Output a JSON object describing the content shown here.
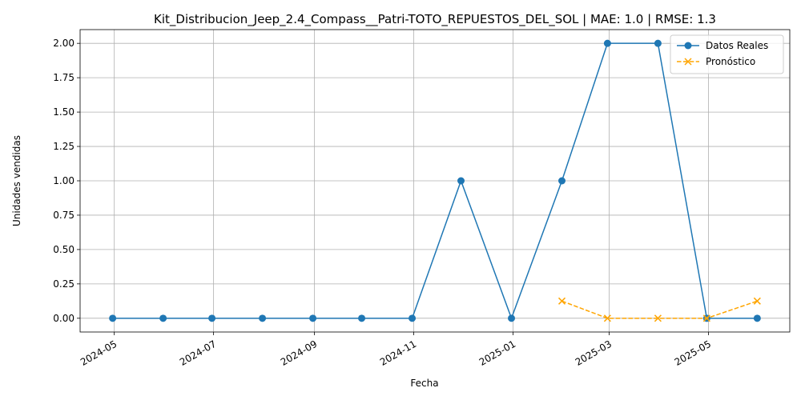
{
  "chart_data": {
    "type": "line",
    "title": "Kit_Distribucion_Jeep_2.4_Compass__Patri-TOTO_REPUESTOS_DEL_SOL | MAE: 1.0 | RMSE: 1.3",
    "xlabel": "Fecha",
    "ylabel": "Unidades vendidas",
    "x_axis": "date",
    "xlim": [
      "2024-04-10",
      "2025-06-20"
    ],
    "ylim": [
      -0.1,
      2.1
    ],
    "x_ticks": [
      "2024-05",
      "2024-07",
      "2024-09",
      "2024-11",
      "2025-01",
      "2025-03",
      "2025-05"
    ],
    "y_ticks": [
      "0.00",
      "0.25",
      "0.50",
      "0.75",
      "1.00",
      "1.25",
      "1.50",
      "1.75",
      "2.00"
    ],
    "grid": true,
    "legend_position": "top-right",
    "series": [
      {
        "name": "Datos Reales",
        "color": "#1f77b4",
        "line_style": "solid",
        "marker": "circle",
        "x": [
          "2024-04-30",
          "2024-05-31",
          "2024-06-30",
          "2024-07-31",
          "2024-08-31",
          "2024-09-30",
          "2024-10-31",
          "2024-11-30",
          "2024-12-31",
          "2025-01-31",
          "2025-02-28",
          "2025-03-31",
          "2025-04-30",
          "2025-05-31"
        ],
        "values": [
          0,
          0,
          0,
          0,
          0,
          0,
          0,
          1,
          0,
          1,
          2,
          2,
          0,
          0
        ]
      },
      {
        "name": "Pronóstico",
        "color": "#ffa500",
        "line_style": "dashed",
        "marker": "x",
        "x": [
          "2025-01-31",
          "2025-02-28",
          "2025-03-31",
          "2025-04-30",
          "2025-05-31"
        ],
        "values": [
          0.125,
          0,
          0,
          0,
          0.125
        ]
      }
    ]
  }
}
